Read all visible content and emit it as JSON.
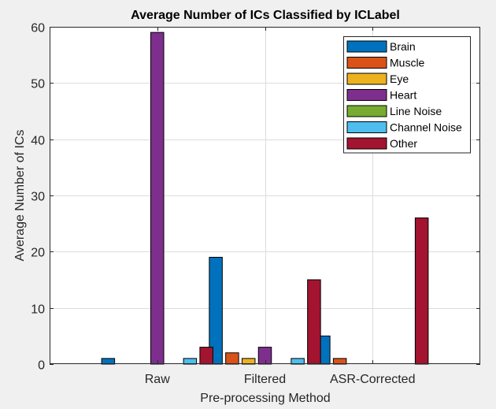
{
  "chart_data": {
    "type": "bar",
    "title": "Average Number of ICs Classified by ICLabel",
    "xlabel": "Pre-processing Method",
    "ylabel": "Average Number of ICs",
    "ylim": [
      0,
      60
    ],
    "yticks": [
      0,
      10,
      20,
      30,
      40,
      50,
      60
    ],
    "categories": [
      "Raw",
      "Filtered",
      "ASR-Corrected"
    ],
    "grid": true,
    "legend_position": "top-right",
    "series": [
      {
        "name": "Brain",
        "color": "#0072bd",
        "values": [
          1,
          19,
          5
        ]
      },
      {
        "name": "Muscle",
        "color": "#d95319",
        "values": [
          0,
          2,
          1
        ]
      },
      {
        "name": "Eye",
        "color": "#edb120",
        "values": [
          0,
          1,
          0
        ]
      },
      {
        "name": "Heart",
        "color": "#7e2f8e",
        "values": [
          59,
          3,
          0
        ]
      },
      {
        "name": "Line Noise",
        "color": "#77ac30",
        "values": [
          0,
          0,
          0
        ]
      },
      {
        "name": "Channel Noise",
        "color": "#4dbeee",
        "values": [
          1,
          1,
          0
        ]
      },
      {
        "name": "Other",
        "color": "#a2142f",
        "values": [
          3,
          15,
          26
        ]
      }
    ]
  }
}
